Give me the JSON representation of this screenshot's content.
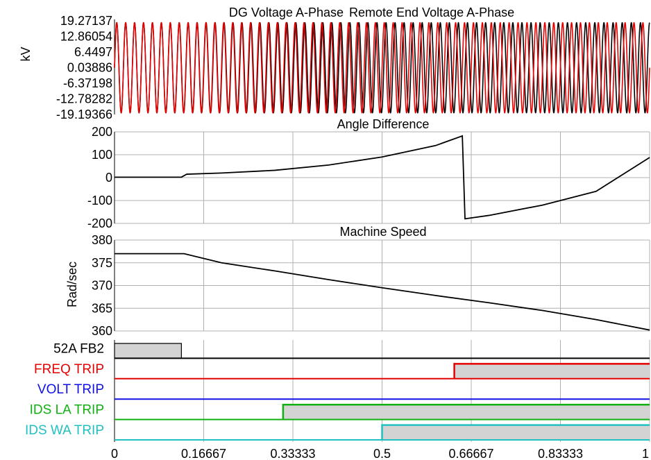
{
  "colors": {
    "black": "#000000",
    "red": "#e60000",
    "blue": "#1010e6",
    "green": "#10b010",
    "cyan": "#20c0c0",
    "grid": "#b0b0b0",
    "fill": "#d3d3d3"
  },
  "x_axis": {
    "range": [
      0,
      1
    ],
    "ticks": [
      0,
      0.16667,
      0.33333,
      0.5,
      0.66667,
      0.83333,
      1
    ],
    "tick_labels": [
      "0",
      "0.16667",
      "0.33333",
      "0.5",
      "0.66667",
      "0.83333",
      "1"
    ]
  },
  "chart_data": [
    {
      "type": "line",
      "title_parts": [
        "DG Voltage A-Phase",
        "Remote End Voltage A-Phase"
      ],
      "ylabel": "kV",
      "ylim": [
        -19.19366,
        19.27137
      ],
      "y_ticks": [
        19.27137,
        12.86054,
        6.4497,
        0.03886,
        -6.37198,
        -12.78282,
        -19.19366
      ],
      "y_tick_labels": [
        "19.27137",
        "12.86054",
        "6.4497",
        "0.03886",
        "-6.37198",
        "-12.78282",
        "-19.19366"
      ],
      "series": [
        {
          "name": "DG Voltage A-Phase",
          "waveform": "sine",
          "amplitude": 18.5,
          "freq_start": 60,
          "freq_end": 58.5
        },
        {
          "name": "Remote End Voltage A-Phase",
          "waveform": "sine",
          "amplitude": 18.5,
          "freq_start": 60,
          "freq_end": 60
        }
      ]
    },
    {
      "type": "line",
      "title": "Angle Difference",
      "ylabel": "",
      "ylim": [
        -200,
        200
      ],
      "y_ticks": [
        200,
        100,
        0,
        -100,
        -200
      ],
      "y_tick_labels": [
        "200",
        "100",
        "0",
        "-100",
        "-200"
      ],
      "grid": true,
      "series": [
        {
          "x": [
            0,
            0.125,
            0.135,
            0.2,
            0.3,
            0.4,
            0.5,
            0.6,
            0.65,
            0.655,
            0.7,
            0.8,
            0.9,
            1.0
          ],
          "y": [
            2,
            2,
            15,
            20,
            32,
            55,
            90,
            140,
            182,
            -180,
            -165,
            -120,
            -60,
            88
          ]
        }
      ]
    },
    {
      "type": "line",
      "title": "Machine Speed",
      "ylabel": "Rad/sec",
      "ylim": [
        360,
        380
      ],
      "y_ticks": [
        380,
        375,
        370,
        365,
        360
      ],
      "y_tick_labels": [
        "380",
        "375",
        "370",
        "365",
        "360"
      ],
      "grid": true,
      "series": [
        {
          "x": [
            0,
            0.13,
            0.2,
            0.3,
            0.4,
            0.5,
            0.6,
            0.7,
            0.8,
            0.9,
            1.0
          ],
          "y": [
            377,
            377,
            375,
            373.2,
            371.3,
            369.5,
            367.8,
            366.2,
            364.5,
            362.5,
            360.2
          ]
        }
      ]
    },
    {
      "type": "digital",
      "grid": true,
      "channels": [
        {
          "label": "52A FB2",
          "color": "#000000",
          "high": [
            [
              0,
              0.125
            ]
          ]
        },
        {
          "label": "FREQ TRIP",
          "color": "#e60000",
          "high": [
            [
              0.635,
              1
            ]
          ]
        },
        {
          "label": "VOLT TRIP",
          "color": "#1010e6",
          "high": []
        },
        {
          "label": "IDS LA TRIP",
          "color": "#10b010",
          "high": [
            [
              0.315,
              1
            ]
          ]
        },
        {
          "label": "IDS WA TRIP",
          "color": "#20c0c0",
          "high": [
            [
              0.5,
              1
            ]
          ]
        }
      ]
    }
  ]
}
